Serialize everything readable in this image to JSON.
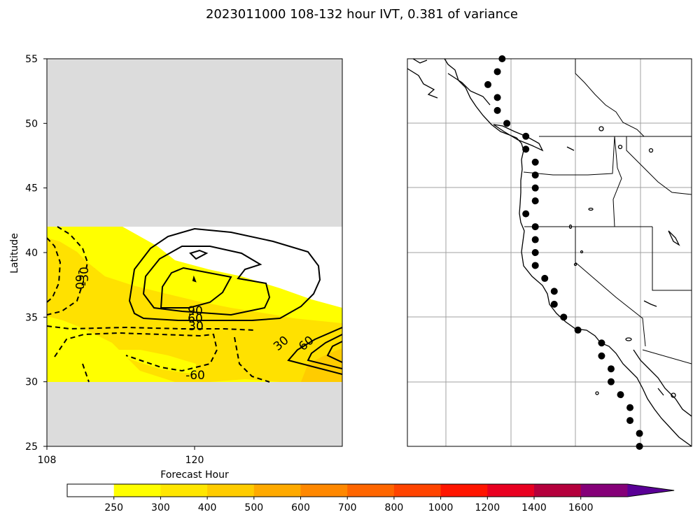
{
  "figure": {
    "title": "2023011000 108-132 hour IVT, 0.381 of variance"
  },
  "chart_data": [
    {
      "type": "contour",
      "xlabel": "Forecast Hour",
      "ylabel": "Latitude",
      "xlim": [
        108,
        132
      ],
      "ylim": [
        25,
        55
      ],
      "x_ticks": [
        "108",
        "120"
      ],
      "y_ticks": [
        "25",
        "30",
        "35",
        "40",
        "45",
        "50",
        "55"
      ],
      "data_lat_range": [
        30,
        42
      ],
      "grid": false,
      "filled_ivt_bands": [
        "250-300",
        "300-400",
        "400-500"
      ],
      "contour_labels": [
        "-30",
        "-60",
        "-60",
        "30",
        "60",
        "90",
        "30",
        "60"
      ],
      "contour_levels": [
        -60,
        -30,
        30,
        60,
        90
      ]
    },
    {
      "type": "map",
      "region": "US West Coast",
      "lon_range": [
        -140,
        -110
      ],
      "lat_range": [
        25,
        55
      ],
      "grid": true,
      "points": [
        [
          -130.0,
          55.0
        ],
        [
          -130.5,
          54.0
        ],
        [
          -131.5,
          53.0
        ],
        [
          -130.5,
          52.0
        ],
        [
          -130.5,
          51.0
        ],
        [
          -129.5,
          50.0
        ],
        [
          -127.5,
          49.0
        ],
        [
          -127.5,
          48.0
        ],
        [
          -126.5,
          47.0
        ],
        [
          -126.5,
          46.0
        ],
        [
          -126.5,
          45.0
        ],
        [
          -126.5,
          44.0
        ],
        [
          -127.5,
          43.0
        ],
        [
          -126.5,
          42.0
        ],
        [
          -126.5,
          41.0
        ],
        [
          -126.5,
          40.0
        ],
        [
          -126.5,
          39.0
        ],
        [
          -125.5,
          38.0
        ],
        [
          -124.5,
          37.0
        ],
        [
          -124.5,
          36.0
        ],
        [
          -123.5,
          35.0
        ],
        [
          -122.0,
          34.0
        ],
        [
          -119.5,
          33.0
        ],
        [
          -119.5,
          32.0
        ],
        [
          -118.5,
          31.0
        ],
        [
          -118.5,
          30.0
        ],
        [
          -117.5,
          29.0
        ],
        [
          -116.5,
          28.0
        ],
        [
          -116.5,
          27.0
        ],
        [
          -115.5,
          26.0
        ],
        [
          -115.5,
          25.0
        ]
      ]
    }
  ],
  "colorbar": {
    "tick_labels": [
      "250",
      "300",
      "400",
      "500",
      "600",
      "700",
      "800",
      "1000",
      "1200",
      "1400",
      "1600"
    ],
    "colors": [
      "#ffffff",
      "#ffff00",
      "#ffe600",
      "#ffcc00",
      "#ffaa00",
      "#ff8800",
      "#ff6600",
      "#ff4400",
      "#ff1500",
      "#e80020",
      "#b4003c",
      "#850078",
      "#5a0096"
    ]
  }
}
